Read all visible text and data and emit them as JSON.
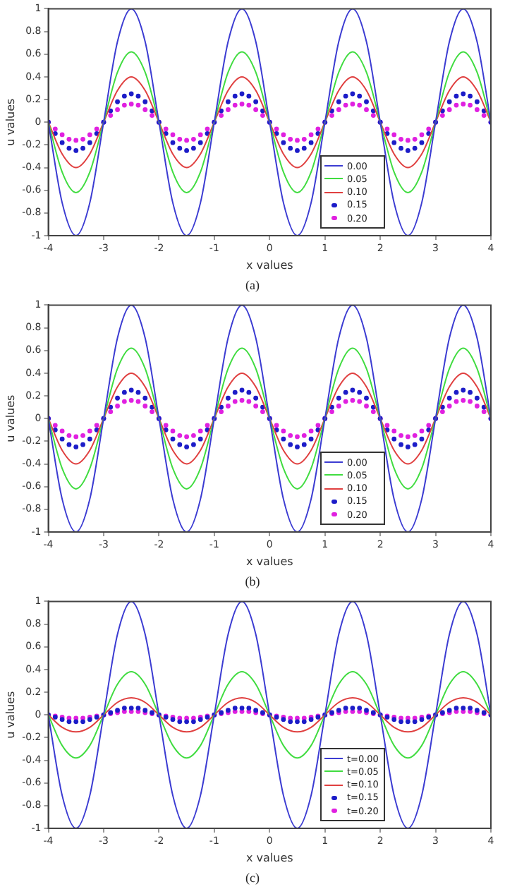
{
  "chart_data": [
    {
      "type": "line",
      "xlabel": "x values",
      "ylabel": "u values",
      "annotations": [
        "(a)"
      ],
      "legend": "bottom right",
      "grid": false,
      "xlim": [
        -4,
        4
      ],
      "ylim": [
        -1,
        1
      ],
      "xticks": [
        -4,
        -3,
        -2,
        -1,
        0,
        1,
        2,
        3,
        4
      ],
      "yticks": [
        -1,
        -0.8,
        -0.6,
        -0.4,
        -0.2,
        0,
        0.2,
        0.4,
        0.6,
        0.8,
        1
      ],
      "x": [
        -4,
        -3.75,
        -3.5,
        -3.25,
        -3,
        -2.75,
        -2.5,
        -2.25,
        -2,
        -1.75,
        -1.5,
        -1.25,
        -1,
        -0.75,
        -0.5,
        -0.25,
        0,
        0.25,
        0.5,
        0.75,
        1,
        1.25,
        1.5,
        1.75,
        2,
        2.25,
        2.5,
        2.75,
        3,
        3.25,
        3.5,
        3.75,
        4
      ],
      "series": [
        {
          "name": "0.00",
          "color": "#3c3cd2",
          "values": [
            0,
            -0.71,
            -1,
            -0.71,
            0,
            0.71,
            1,
            0.71,
            0,
            -0.71,
            -1,
            -0.71,
            0,
            0.71,
            1,
            0.71,
            0,
            -0.71,
            -1,
            -0.71,
            0,
            0.71,
            1,
            0.71,
            0,
            -0.71,
            -1,
            -0.71,
            0,
            0.71,
            1,
            0.71,
            0
          ]
        },
        {
          "name": "0.05",
          "color": "#40dc40",
          "values": [
            0,
            -0.44,
            -0.62,
            -0.44,
            0,
            0.44,
            0.62,
            0.44,
            0,
            -0.44,
            -0.62,
            -0.44,
            0,
            0.44,
            0.62,
            0.44,
            0,
            -0.44,
            -0.62,
            -0.44,
            0,
            0.44,
            0.62,
            0.44,
            0,
            -0.44,
            -0.62,
            -0.44,
            0,
            0.44,
            0.62,
            0.44,
            0
          ]
        },
        {
          "name": "0.10",
          "color": "#e04040",
          "values": [
            0,
            -0.28,
            -0.4,
            -0.28,
            0,
            0.28,
            0.4,
            0.28,
            0,
            -0.28,
            -0.4,
            -0.28,
            0,
            0.28,
            0.4,
            0.28,
            0,
            -0.28,
            -0.4,
            -0.28,
            0,
            0.28,
            0.4,
            0.28,
            0,
            -0.28,
            -0.4,
            -0.28,
            0,
            0.28,
            0.4,
            0.28,
            0
          ]
        },
        {
          "name": "0.15",
          "color": "#1c1cc8",
          "type": "scatter",
          "marker": "circle",
          "x": [
            -4,
            -3.875,
            -3.75,
            -3.625,
            -3.5,
            -3.375,
            -3.25,
            -3.125,
            -3,
            -2.875,
            -2.75,
            -2.625,
            -2.5,
            -2.375,
            -2.25,
            -2.125,
            -2,
            -1.875,
            -1.75,
            -1.625,
            -1.5,
            -1.375,
            -1.25,
            -1.125,
            -1,
            -0.875,
            -0.75,
            -0.625,
            -0.5,
            -0.375,
            -0.25,
            -0.125,
            0,
            0.125,
            0.25,
            0.375,
            0.5,
            0.625,
            0.75,
            0.875,
            1,
            1.125,
            1.25,
            1.375,
            1.5,
            1.625,
            1.75,
            1.875,
            2,
            2.125,
            2.25,
            2.375,
            2.5,
            2.625,
            2.75,
            2.875,
            3,
            3.125,
            3.25,
            3.375,
            3.5,
            3.625,
            3.75,
            3.875,
            4
          ],
          "values": [
            0,
            -0.1,
            -0.18,
            -0.23,
            -0.25,
            -0.23,
            -0.18,
            -0.1,
            0,
            0.1,
            0.18,
            0.23,
            0.25,
            0.23,
            0.18,
            0.1,
            0,
            -0.1,
            -0.18,
            -0.23,
            -0.25,
            -0.23,
            -0.18,
            -0.1,
            0,
            0.1,
            0.18,
            0.23,
            0.25,
            0.23,
            0.18,
            0.1,
            0,
            -0.1,
            -0.18,
            -0.23,
            -0.25,
            -0.23,
            -0.18,
            -0.1,
            0,
            0.1,
            0.18,
            0.23,
            0.25,
            0.23,
            0.18,
            0.1,
            0,
            -0.1,
            -0.18,
            -0.23,
            -0.25,
            -0.23,
            -0.18,
            -0.1,
            0,
            0.1,
            0.18,
            0.23,
            0.25,
            0.23,
            0.18,
            0.1,
            0
          ]
        },
        {
          "name": "0.20",
          "color": "#e020e0",
          "type": "scatter",
          "marker": "circle",
          "x": [
            -4,
            -3.875,
            -3.75,
            -3.625,
            -3.5,
            -3.375,
            -3.25,
            -3.125,
            -3,
            -2.875,
            -2.75,
            -2.625,
            -2.5,
            -2.375,
            -2.25,
            -2.125,
            -2,
            -1.875,
            -1.75,
            -1.625,
            -1.5,
            -1.375,
            -1.25,
            -1.125,
            -1,
            -0.875,
            -0.75,
            -0.625,
            -0.5,
            -0.375,
            -0.25,
            -0.125,
            0,
            0.125,
            0.25,
            0.375,
            0.5,
            0.625,
            0.75,
            0.875,
            1,
            1.125,
            1.25,
            1.375,
            1.5,
            1.625,
            1.75,
            1.875,
            2,
            2.125,
            2.25,
            2.375,
            2.5,
            2.625,
            2.75,
            2.875,
            3,
            3.125,
            3.25,
            3.375,
            3.5,
            3.625,
            3.75,
            3.875,
            4
          ],
          "values": [
            0,
            -0.06,
            -0.11,
            -0.15,
            -0.16,
            -0.15,
            -0.11,
            -0.06,
            0,
            0.06,
            0.11,
            0.15,
            0.16,
            0.15,
            0.11,
            0.06,
            0,
            -0.06,
            -0.11,
            -0.15,
            -0.16,
            -0.15,
            -0.11,
            -0.06,
            0,
            0.06,
            0.11,
            0.15,
            0.16,
            0.15,
            0.11,
            0.06,
            0,
            -0.06,
            -0.11,
            -0.15,
            -0.16,
            -0.15,
            -0.11,
            -0.06,
            0,
            0.06,
            0.11,
            0.15,
            0.16,
            0.15,
            0.11,
            0.06,
            0,
            -0.06,
            -0.11,
            -0.15,
            -0.16,
            -0.15,
            -0.11,
            -0.06,
            0,
            0.06,
            0.11,
            0.15,
            0.16,
            0.15,
            0.11,
            0.06,
            0
          ]
        }
      ]
    },
    {
      "type": "line",
      "xlabel": "x values",
      "ylabel": "u values",
      "annotations": [
        "(b)"
      ],
      "legend": "bottom right",
      "grid": false,
      "xlim": [
        -4,
        4
      ],
      "ylim": [
        -1,
        1
      ],
      "xticks": [
        -4,
        -3,
        -2,
        -1,
        0,
        1,
        2,
        3,
        4
      ],
      "yticks": [
        -1,
        -0.8,
        -0.6,
        -0.4,
        -0.2,
        0,
        0.2,
        0.4,
        0.6,
        0.8,
        1
      ],
      "x": [
        -4,
        -3.75,
        -3.5,
        -3.25,
        -3,
        -2.75,
        -2.5,
        -2.25,
        -2,
        -1.75,
        -1.5,
        -1.25,
        -1,
        -0.75,
        -0.5,
        -0.25,
        0,
        0.25,
        0.5,
        0.75,
        1,
        1.25,
        1.5,
        1.75,
        2,
        2.25,
        2.5,
        2.75,
        3,
        3.25,
        3.5,
        3.75,
        4
      ],
      "series": [
        {
          "name": "0.00",
          "color": "#3c3cd2",
          "values": [
            0,
            -0.71,
            -1,
            -0.71,
            0,
            0.71,
            1,
            0.71,
            0,
            -0.71,
            -1,
            -0.71,
            0,
            0.71,
            1,
            0.71,
            0,
            -0.71,
            -1,
            -0.71,
            0,
            0.71,
            1,
            0.71,
            0,
            -0.71,
            -1,
            -0.71,
            0,
            0.71,
            1,
            0.71,
            0
          ]
        },
        {
          "name": "0.05",
          "color": "#40dc40",
          "values": [
            0,
            -0.44,
            -0.62,
            -0.44,
            0,
            0.44,
            0.62,
            0.44,
            0,
            -0.44,
            -0.62,
            -0.44,
            0,
            0.44,
            0.62,
            0.44,
            0,
            -0.44,
            -0.62,
            -0.44,
            0,
            0.44,
            0.62,
            0.44,
            0,
            -0.44,
            -0.62,
            -0.44,
            0,
            0.44,
            0.62,
            0.44,
            0
          ]
        },
        {
          "name": "0.10",
          "color": "#e04040",
          "values": [
            0,
            -0.28,
            -0.4,
            -0.28,
            0,
            0.28,
            0.4,
            0.28,
            0,
            -0.28,
            -0.4,
            -0.28,
            0,
            0.28,
            0.4,
            0.28,
            0,
            -0.28,
            -0.4,
            -0.28,
            0,
            0.28,
            0.4,
            0.28,
            0,
            -0.28,
            -0.4,
            -0.28,
            0,
            0.28,
            0.4,
            0.28,
            0
          ]
        },
        {
          "name": "0.15",
          "color": "#1c1cc8",
          "type": "scatter",
          "marker": "circle",
          "x": [
            -4,
            -3.875,
            -3.75,
            -3.625,
            -3.5,
            -3.375,
            -3.25,
            -3.125,
            -3,
            -2.875,
            -2.75,
            -2.625,
            -2.5,
            -2.375,
            -2.25,
            -2.125,
            -2,
            -1.875,
            -1.75,
            -1.625,
            -1.5,
            -1.375,
            -1.25,
            -1.125,
            -1,
            -0.875,
            -0.75,
            -0.625,
            -0.5,
            -0.375,
            -0.25,
            -0.125,
            0,
            0.125,
            0.25,
            0.375,
            0.5,
            0.625,
            0.75,
            0.875,
            1,
            1.125,
            1.25,
            1.375,
            1.5,
            1.625,
            1.75,
            1.875,
            2,
            2.125,
            2.25,
            2.375,
            2.5,
            2.625,
            2.75,
            2.875,
            3,
            3.125,
            3.25,
            3.375,
            3.5,
            3.625,
            3.75,
            3.875,
            4
          ],
          "values": [
            0,
            -0.1,
            -0.18,
            -0.23,
            -0.25,
            -0.23,
            -0.18,
            -0.1,
            0,
            0.1,
            0.18,
            0.23,
            0.25,
            0.23,
            0.18,
            0.1,
            0,
            -0.1,
            -0.18,
            -0.23,
            -0.25,
            -0.23,
            -0.18,
            -0.1,
            0,
            0.1,
            0.18,
            0.23,
            0.25,
            0.23,
            0.18,
            0.1,
            0,
            -0.1,
            -0.18,
            -0.23,
            -0.25,
            -0.23,
            -0.18,
            -0.1,
            0,
            0.1,
            0.18,
            0.23,
            0.25,
            0.23,
            0.18,
            0.1,
            0,
            -0.1,
            -0.18,
            -0.23,
            -0.25,
            -0.23,
            -0.18,
            -0.1,
            0,
            0.1,
            0.18,
            0.23,
            0.25,
            0.23,
            0.18,
            0.1,
            0
          ]
        },
        {
          "name": "0.20",
          "color": "#e020e0",
          "type": "scatter",
          "marker": "circle",
          "x": [
            -4,
            -3.875,
            -3.75,
            -3.625,
            -3.5,
            -3.375,
            -3.25,
            -3.125,
            -3,
            -2.875,
            -2.75,
            -2.625,
            -2.5,
            -2.375,
            -2.25,
            -2.125,
            -2,
            -1.875,
            -1.75,
            -1.625,
            -1.5,
            -1.375,
            -1.25,
            -1.125,
            -1,
            -0.875,
            -0.75,
            -0.625,
            -0.5,
            -0.375,
            -0.25,
            -0.125,
            0,
            0.125,
            0.25,
            0.375,
            0.5,
            0.625,
            0.75,
            0.875,
            1,
            1.125,
            1.25,
            1.375,
            1.5,
            1.625,
            1.75,
            1.875,
            2,
            2.125,
            2.25,
            2.375,
            2.5,
            2.625,
            2.75,
            2.875,
            3,
            3.125,
            3.25,
            3.375,
            3.5,
            3.625,
            3.75,
            3.875,
            4
          ],
          "values": [
            0,
            -0.06,
            -0.11,
            -0.15,
            -0.16,
            -0.15,
            -0.11,
            -0.06,
            0,
            0.06,
            0.11,
            0.15,
            0.16,
            0.15,
            0.11,
            0.06,
            0,
            -0.06,
            -0.11,
            -0.15,
            -0.16,
            -0.15,
            -0.11,
            -0.06,
            0,
            0.06,
            0.11,
            0.15,
            0.16,
            0.15,
            0.11,
            0.06,
            0,
            -0.06,
            -0.11,
            -0.15,
            -0.16,
            -0.15,
            -0.11,
            -0.06,
            0,
            0.06,
            0.11,
            0.15,
            0.16,
            0.15,
            0.11,
            0.06,
            0,
            -0.06,
            -0.11,
            -0.15,
            -0.16,
            -0.15,
            -0.11,
            -0.06,
            0,
            0.06,
            0.11,
            0.15,
            0.16,
            0.15,
            0.11,
            0.06,
            0
          ]
        }
      ]
    },
    {
      "type": "line",
      "xlabel": "x values",
      "ylabel": "u values",
      "annotations": [
        "(c)"
      ],
      "legend": "bottom right",
      "grid": false,
      "xlim": [
        -4,
        4
      ],
      "ylim": [
        -1,
        1
      ],
      "xticks": [
        -4,
        -3,
        -2,
        -1,
        0,
        1,
        2,
        3,
        4
      ],
      "yticks": [
        -1,
        -0.8,
        -0.6,
        -0.4,
        -0.2,
        0,
        0.2,
        0.4,
        0.6,
        0.8,
        1
      ],
      "x": [
        -4,
        -3.75,
        -3.5,
        -3.25,
        -3,
        -2.75,
        -2.5,
        -2.25,
        -2,
        -1.75,
        -1.5,
        -1.25,
        -1,
        -0.75,
        -0.5,
        -0.25,
        0,
        0.25,
        0.5,
        0.75,
        1,
        1.25,
        1.5,
        1.75,
        2,
        2.25,
        2.5,
        2.75,
        3,
        3.25,
        3.5,
        3.75,
        4
      ],
      "series": [
        {
          "name": "t=0.00",
          "color": "#3c3cd2",
          "values": [
            0,
            -0.71,
            -1,
            -0.71,
            0,
            0.71,
            1,
            0.71,
            0,
            -0.71,
            -1,
            -0.71,
            0,
            0.71,
            1,
            0.71,
            0,
            -0.71,
            -1,
            -0.71,
            0,
            0.71,
            1,
            0.71,
            0,
            -0.71,
            -1,
            -0.71,
            0,
            0.71,
            1,
            0.71,
            0
          ]
        },
        {
          "name": "t=0.05",
          "color": "#40dc40",
          "values": [
            0,
            -0.27,
            -0.38,
            -0.27,
            0,
            0.27,
            0.38,
            0.27,
            0,
            -0.27,
            -0.38,
            -0.27,
            0,
            0.27,
            0.38,
            0.27,
            0,
            -0.27,
            -0.38,
            -0.27,
            0,
            0.27,
            0.38,
            0.27,
            0,
            -0.27,
            -0.38,
            -0.27,
            0,
            0.27,
            0.38,
            0.27,
            0
          ]
        },
        {
          "name": "t=0.10",
          "color": "#e04040",
          "values": [
            0,
            -0.11,
            -0.15,
            -0.11,
            0,
            0.11,
            0.15,
            0.11,
            0,
            -0.11,
            -0.15,
            -0.11,
            0,
            0.11,
            0.15,
            0.11,
            0,
            -0.11,
            -0.15,
            -0.11,
            0,
            0.11,
            0.15,
            0.11,
            0,
            -0.11,
            -0.15,
            -0.11,
            0,
            0.11,
            0.15,
            0.11,
            0
          ]
        },
        {
          "name": "t=0.15",
          "color": "#1c1cc8",
          "type": "scatter",
          "marker": "circle",
          "x": [
            -4,
            -3.875,
            -3.75,
            -3.625,
            -3.5,
            -3.375,
            -3.25,
            -3.125,
            -3,
            -2.875,
            -2.75,
            -2.625,
            -2.5,
            -2.375,
            -2.25,
            -2.125,
            -2,
            -1.875,
            -1.75,
            -1.625,
            -1.5,
            -1.375,
            -1.25,
            -1.125,
            -1,
            -0.875,
            -0.75,
            -0.625,
            -0.5,
            -0.375,
            -0.25,
            -0.125,
            0,
            0.125,
            0.25,
            0.375,
            0.5,
            0.625,
            0.75,
            0.875,
            1,
            1.125,
            1.25,
            1.375,
            1.5,
            1.625,
            1.75,
            1.875,
            2,
            2.125,
            2.25,
            2.375,
            2.5,
            2.625,
            2.75,
            2.875,
            3,
            3.125,
            3.25,
            3.375,
            3.5,
            3.625,
            3.75,
            3.875,
            4
          ],
          "values": [
            0,
            -0.02,
            -0.04,
            -0.06,
            -0.06,
            -0.06,
            -0.04,
            -0.02,
            0,
            0.02,
            0.04,
            0.06,
            0.06,
            0.06,
            0.04,
            0.02,
            0,
            -0.02,
            -0.04,
            -0.06,
            -0.06,
            -0.06,
            -0.04,
            -0.02,
            0,
            0.02,
            0.04,
            0.06,
            0.06,
            0.06,
            0.04,
            0.02,
            0,
            -0.02,
            -0.04,
            -0.06,
            -0.06,
            -0.06,
            -0.04,
            -0.02,
            0,
            0.02,
            0.04,
            0.06,
            0.06,
            0.06,
            0.04,
            0.02,
            0,
            -0.02,
            -0.04,
            -0.06,
            -0.06,
            -0.06,
            -0.04,
            -0.02,
            0,
            0.02,
            0.04,
            0.06,
            0.06,
            0.06,
            0.04,
            0.02,
            0
          ]
        },
        {
          "name": "t=0.20",
          "color": "#e020e0",
          "type": "scatter",
          "marker": "circle",
          "x": [
            -4,
            -3.875,
            -3.75,
            -3.625,
            -3.5,
            -3.375,
            -3.25,
            -3.125,
            -3,
            -2.875,
            -2.75,
            -2.625,
            -2.5,
            -2.375,
            -2.25,
            -2.125,
            -2,
            -1.875,
            -1.75,
            -1.625,
            -1.5,
            -1.375,
            -1.25,
            -1.125,
            -1,
            -0.875,
            -0.75,
            -0.625,
            -0.5,
            -0.375,
            -0.25,
            -0.125,
            0,
            0.125,
            0.25,
            0.375,
            0.5,
            0.625,
            0.75,
            0.875,
            1,
            1.125,
            1.25,
            1.375,
            1.5,
            1.625,
            1.75,
            1.875,
            2,
            2.125,
            2.25,
            2.375,
            2.5,
            2.625,
            2.75,
            2.875,
            3,
            3.125,
            3.25,
            3.375,
            3.5,
            3.625,
            3.75,
            3.875,
            4
          ],
          "values": [
            0,
            -0.01,
            -0.02,
            -0.03,
            -0.03,
            -0.03,
            -0.02,
            -0.01,
            0,
            0.01,
            0.02,
            0.03,
            0.03,
            0.03,
            0.02,
            0.01,
            0,
            -0.01,
            -0.02,
            -0.03,
            -0.03,
            -0.03,
            -0.02,
            -0.01,
            0,
            0.01,
            0.02,
            0.03,
            0.03,
            0.03,
            0.02,
            0.01,
            0,
            -0.01,
            -0.02,
            -0.03,
            -0.03,
            -0.03,
            -0.02,
            -0.01,
            0,
            0.01,
            0.02,
            0.03,
            0.03,
            0.03,
            0.02,
            0.01,
            0,
            -0.01,
            -0.02,
            -0.03,
            -0.03,
            -0.03,
            -0.02,
            -0.01,
            0,
            0.01,
            0.02,
            0.03,
            0.03,
            0.03,
            0.02,
            0.01,
            0
          ]
        }
      ]
    }
  ]
}
